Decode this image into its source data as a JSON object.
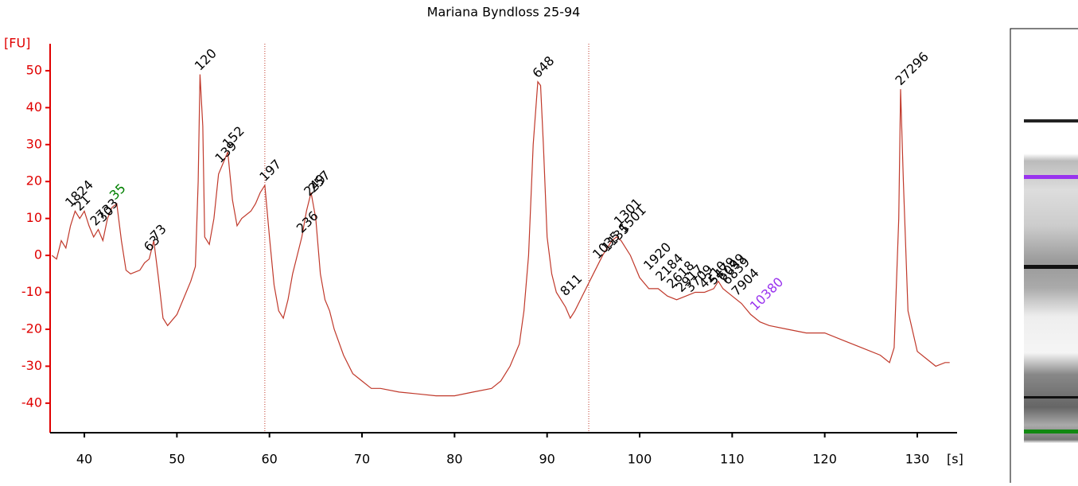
{
  "chart_data": {
    "type": "line",
    "title": "Mariana Byndloss 25-94",
    "y_label": "[FU]",
    "x_label": "[s]",
    "color": "#c0392b",
    "axis_color": "#e00000",
    "x": [
      36.5,
      37,
      37.5,
      38,
      38.5,
      39,
      39.5,
      40,
      40.5,
      41,
      41.5,
      42,
      42.5,
      43,
      43.5,
      44,
      44.5,
      45,
      46,
      46.5,
      47,
      47.5,
      48,
      48.5,
      49,
      50,
      51,
      51.5,
      52,
      52.3,
      52.5,
      52.8,
      53,
      53.5,
      54,
      54.5,
      55,
      55.5,
      56,
      56.5,
      57,
      58,
      58.5,
      59,
      59.5,
      60,
      60.5,
      61,
      61.5,
      62,
      62.5,
      63,
      63.5,
      64,
      64.5,
      65,
      65.5,
      66,
      66.5,
      67,
      68,
      69,
      70,
      71,
      72,
      74,
      76,
      78,
      80,
      82,
      84,
      85,
      86,
      87,
      87.5,
      88,
      88.5,
      89,
      89.3,
      89.6,
      90,
      90.5,
      91,
      92,
      92.5,
      93,
      94,
      95,
      96,
      97,
      97.5,
      98,
      99,
      100,
      101,
      102,
      103,
      104,
      105,
      106,
      107,
      108,
      108.5,
      109,
      110,
      111,
      112,
      113,
      114,
      116,
      118,
      120,
      122,
      124,
      126,
      127,
      127.5,
      128,
      128.2,
      128.5,
      129,
      130,
      131,
      132,
      133,
      133.5
    ],
    "y": [
      0,
      -1,
      4,
      2,
      8,
      12,
      10,
      12,
      8,
      5,
      7,
      4,
      10,
      13,
      14,
      4,
      -4,
      -5,
      -4,
      -2,
      -1,
      4,
      -6,
      -17,
      -19,
      -16,
      -10,
      -7,
      -3,
      20,
      49,
      35,
      5,
      3,
      10,
      22,
      25,
      28,
      15,
      8,
      10,
      12,
      14,
      17,
      19,
      5,
      -8,
      -15,
      -17,
      -12,
      -5,
      0,
      5,
      12,
      17,
      10,
      -5,
      -12,
      -15,
      -20,
      -27,
      -32,
      -34,
      -36,
      -36,
      -37,
      -37.5,
      -38,
      -38,
      -37,
      -36,
      -34,
      -30,
      -24,
      -15,
      0,
      30,
      47,
      46,
      30,
      5,
      -5,
      -10,
      -14,
      -17,
      -15,
      -10,
      -5,
      0,
      4,
      5,
      4,
      0,
      -6,
      -9,
      -9,
      -11,
      -12,
      -11,
      -10,
      -10,
      -9,
      -7,
      -9,
      -11,
      -13,
      -16,
      -18,
      -19,
      -20,
      -21,
      -21,
      -23,
      -25,
      -27,
      -29,
      -25,
      10,
      45,
      20,
      -15,
      -26,
      -28,
      -30,
      -29,
      -29
    ],
    "xlim": [
      36.3,
      134.3
    ],
    "xticks": [
      40,
      50,
      60,
      70,
      80,
      90,
      100,
      110,
      120,
      130
    ],
    "ylim": [
      -48,
      57.3
    ],
    "yticks": [
      -40,
      -30,
      -20,
      -10,
      0,
      10,
      20,
      30,
      40,
      50
    ],
    "markers": [
      59.5,
      94.5
    ],
    "peaks": [
      {
        "label": "18",
        "x": 38.5,
        "y": 12,
        "color": "#000000"
      },
      {
        "label": "21",
        "x": 39.5,
        "y": 11,
        "color": "#000000"
      },
      {
        "label": "24",
        "x": 39.8,
        "y": 15,
        "color": "#000000"
      },
      {
        "label": "27",
        "x": 41.2,
        "y": 7,
        "color": "#000000"
      },
      {
        "label": "30",
        "x": 42,
        "y": 8,
        "color": "#000000"
      },
      {
        "label": "33",
        "x": 42.5,
        "y": 10,
        "color": "#000000"
      },
      {
        "label": "35",
        "x": 43.3,
        "y": 14,
        "color": "#008000"
      },
      {
        "label": "63",
        "x": 47,
        "y": 0,
        "color": "#000000"
      },
      {
        "label": "73",
        "x": 47.7,
        "y": 3,
        "color": "#000000"
      },
      {
        "label": "120",
        "x": 52.5,
        "y": 49,
        "color": "#000000"
      },
      {
        "label": "139",
        "x": 54.7,
        "y": 24,
        "color": "#000000"
      },
      {
        "label": "152",
        "x": 55.5,
        "y": 28,
        "color": "#000000"
      },
      {
        "label": "197",
        "x": 59.5,
        "y": 19,
        "color": "#000000"
      },
      {
        "label": "236",
        "x": 63.5,
        "y": 5,
        "color": "#000000"
      },
      {
        "label": "249",
        "x": 64.3,
        "y": 15,
        "color": "#000000"
      },
      {
        "label": "257",
        "x": 64.8,
        "y": 16,
        "color": "#000000"
      },
      {
        "label": "648",
        "x": 89,
        "y": 47,
        "color": "#000000"
      },
      {
        "label": "811",
        "x": 92,
        "y": -12,
        "color": "#000000"
      },
      {
        "label": "1035",
        "x": 95.5,
        "y": -2,
        "color": "#000000"
      },
      {
        "label": "1135",
        "x": 96.5,
        "y": 0,
        "color": "#000000"
      },
      {
        "label": "1301",
        "x": 97.8,
        "y": 7,
        "color": "#000000"
      },
      {
        "label": "1501",
        "x": 98.3,
        "y": 5,
        "color": "#000000"
      },
      {
        "label": "1920",
        "x": 101,
        "y": -5,
        "color": "#000000"
      },
      {
        "label": "2184",
        "x": 102.3,
        "y": -8,
        "color": "#000000"
      },
      {
        "label": "2618",
        "x": 103.5,
        "y": -10,
        "color": "#000000"
      },
      {
        "label": "2917",
        "x": 104.5,
        "y": -11,
        "color": "#000000"
      },
      {
        "label": "3709",
        "x": 105.5,
        "y": -11,
        "color": "#000000"
      },
      {
        "label": "4210",
        "x": 107,
        "y": -10,
        "color": "#000000"
      },
      {
        "label": "5479",
        "x": 108,
        "y": -9,
        "color": "#000000"
      },
      {
        "label": "6099",
        "x": 109,
        "y": -8,
        "color": "#000000"
      },
      {
        "label": "6839",
        "x": 109.5,
        "y": -9,
        "color": "#000000"
      },
      {
        "label": "7904",
        "x": 110.5,
        "y": -12,
        "color": "#000000"
      },
      {
        "label": "10380",
        "x": 112.5,
        "y": -16,
        "color": "#9933ee"
      },
      {
        "label": "27296",
        "x": 128.2,
        "y": 45,
        "color": "#000000"
      }
    ]
  }
}
